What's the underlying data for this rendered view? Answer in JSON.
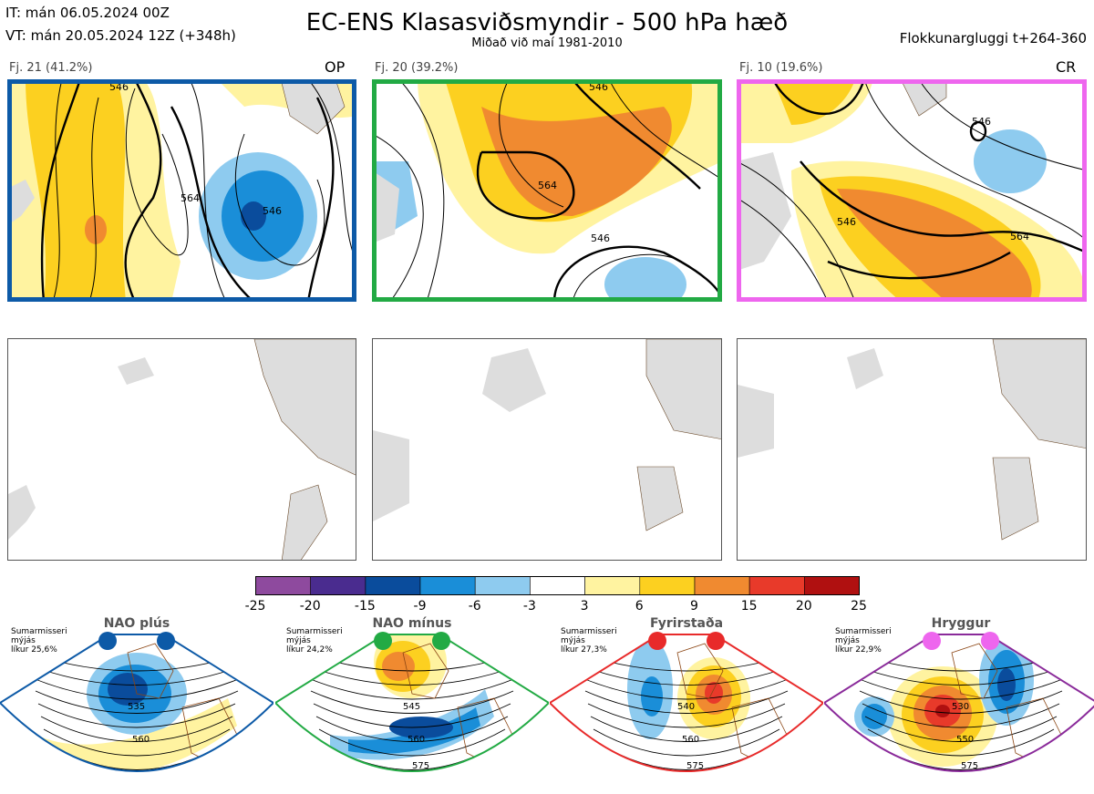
{
  "header": {
    "it_line": "IT: mán 06.05.2024 00Z",
    "vt_line": "VT: mán 20.05.2024 12Z  (+348h)",
    "title": "EC-ENS Klasasviðsmyndir - 500 hPa hæð",
    "subtitle": "Miðað við maí 1981-2010",
    "window": "Flokkunargluggi t+264-360"
  },
  "clusters": [
    {
      "label": "Fj. 21 (41.2%)",
      "tag": "OP",
      "color": "#0d5aa7"
    },
    {
      "label": "Fj. 20 (39.2%)",
      "tag": "",
      "color": "#22aa44"
    },
    {
      "label": "Fj. 10 (19.6%)",
      "tag": "CR",
      "color": "#ee66ee"
    }
  ],
  "contour_labels": {
    "a": "546",
    "b": "564"
  },
  "colorbar": {
    "colors": [
      "#8e4a9e",
      "#4a2c8f",
      "#0a4c9c",
      "#1a8ed8",
      "#8ecbef",
      "#ffffff",
      "#fff3a0",
      "#fcd020",
      "#f08a30",
      "#e83a2a",
      "#b01010"
    ],
    "ticks": [
      "-25",
      "-20",
      "-15",
      "-9",
      "-6",
      "-3",
      "3",
      "6",
      "9",
      "15",
      "20",
      "25"
    ]
  },
  "regimes": [
    {
      "name": "NAO plús",
      "l1": "Sumarmisseri",
      "l2": "mýjás",
      "l3": "líkur 25,6%",
      "dot": "#0d5aa7",
      "edge": "#0d5aa7",
      "c1": "535",
      "c2": "560"
    },
    {
      "name": "NAO mínus",
      "l1": "Sumarmisseri",
      "l2": "mýjás",
      "l3": "líkur 24,2%",
      "dot": "#22aa44",
      "edge": "#22aa44",
      "c1": "545",
      "c2": "560",
      "c3": "575"
    },
    {
      "name": "Fyrirstaða",
      "l1": "Sumarmisseri",
      "l2": "mýjás",
      "l3": "líkur 27,3%",
      "dot": "#e82a2a",
      "edge": "#e82a2a",
      "c1": "540",
      "c2": "560",
      "c3": "575"
    },
    {
      "name": "Hryggur",
      "l1": "Sumarmisseri",
      "l2": "mýjás",
      "l3": "líkur 22,9%",
      "dot": "#ee66ee",
      "edge": "#8a2a9a",
      "c1": "530",
      "c2": "550",
      "c3": "575"
    }
  ]
}
